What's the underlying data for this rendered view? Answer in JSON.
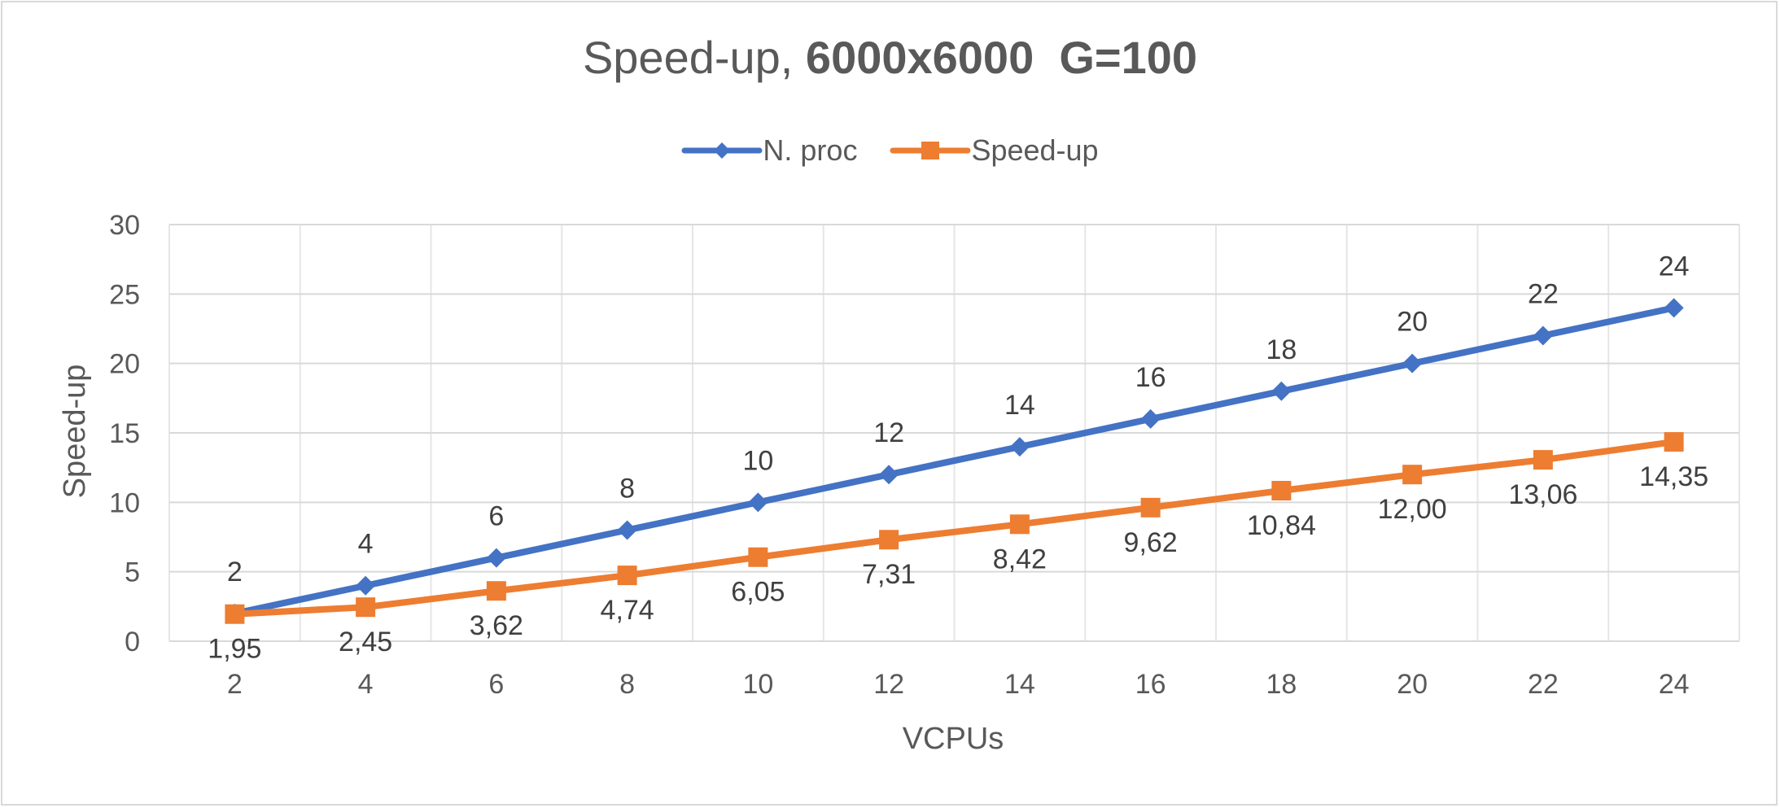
{
  "chart_data": {
    "type": "line",
    "title_regular": "Speed-up, ",
    "title_bold": "6000x6000  G=100",
    "xlabel": "VCPUs",
    "ylabel": "Speed-up",
    "x": [
      2,
      4,
      6,
      8,
      10,
      12,
      14,
      16,
      18,
      20,
      22,
      24
    ],
    "x_tick_labels": [
      "2",
      "4",
      "6",
      "8",
      "10",
      "12",
      "14",
      "16",
      "18",
      "20",
      "22",
      "24"
    ],
    "ylim": [
      0,
      30
    ],
    "y_ticks": [
      0,
      5,
      10,
      15,
      20,
      25,
      30
    ],
    "y_tick_labels": [
      "0",
      "5",
      "10",
      "15",
      "20",
      "25",
      "30"
    ],
    "grid": true,
    "legend_position": "top-center",
    "series": [
      {
        "name": "N. proc",
        "color": "#4472c4",
        "marker": "diamond",
        "label_position": "above",
        "values": [
          2,
          4,
          6,
          8,
          10,
          12,
          14,
          16,
          18,
          20,
          22,
          24
        ],
        "data_labels": [
          "2",
          "4",
          "6",
          "8",
          "10",
          "12",
          "14",
          "16",
          "18",
          "20",
          "22",
          "24"
        ]
      },
      {
        "name": "Speed-up",
        "color": "#ed7d31",
        "marker": "square",
        "label_position": "below",
        "values": [
          1.95,
          2.45,
          3.62,
          4.74,
          6.05,
          7.31,
          8.42,
          9.62,
          10.84,
          12.0,
          13.06,
          14.35
        ],
        "data_labels": [
          "1,95",
          "2,45",
          "3,62",
          "4,74",
          "6,05",
          "7,31",
          "8,42",
          "9,62",
          "10,84",
          "12,00",
          "13,06",
          "14,35"
        ]
      }
    ]
  }
}
